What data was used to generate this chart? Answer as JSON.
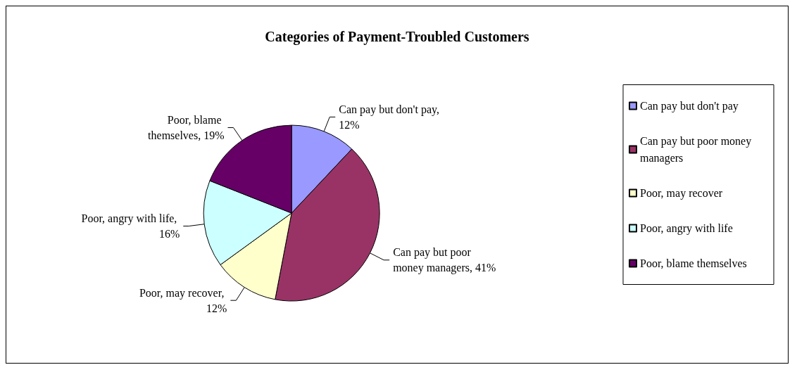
{
  "chart_data": {
    "type": "pie",
    "title": "Categories of Payment-Troubled Customers",
    "categories": [
      "Can pay but don't pay",
      "Can pay but poor money managers",
      "Poor, may recover",
      "Poor, angry with life",
      "Poor, blame themselves"
    ],
    "values": [
      12,
      41,
      12,
      16,
      19
    ],
    "colors": [
      "#9999ff",
      "#993366",
      "#ffffcc",
      "#ccffff",
      "#660066"
    ],
    "value_labels": [
      "Can pay but don't pay, 12%",
      "Can pay but poor money managers, 41%",
      "Poor, may recover, 12%",
      "Poor, angry with life, 16%",
      "Poor, blame themselves, 19%"
    ],
    "legend": "right"
  }
}
